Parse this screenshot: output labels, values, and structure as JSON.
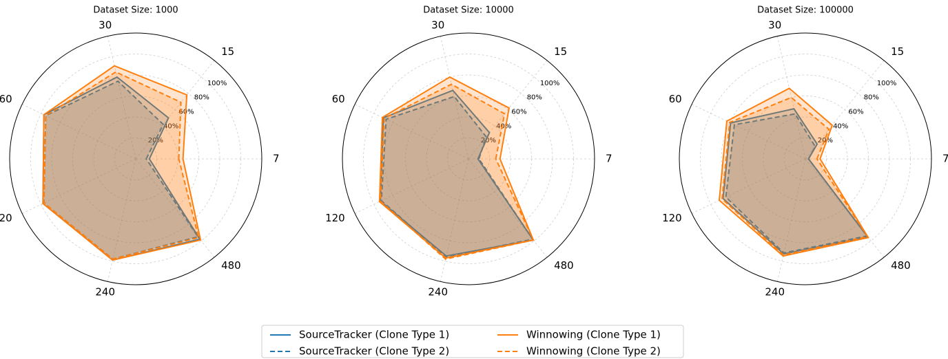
{
  "chart_data": [
    {
      "type": "radar",
      "title": "Dataset Size: 1000",
      "categories": [
        "7",
        "15",
        "30",
        "60",
        "120",
        "240",
        "480"
      ],
      "ylim": [
        0,
        120
      ],
      "yticks": [
        {
          "value": 20,
          "label": "20%"
        },
        {
          "value": 40,
          "label": "40%"
        },
        {
          "value": 60,
          "label": "60%"
        },
        {
          "value": 80,
          "label": "80%"
        },
        {
          "value": 100,
          "label": "100%"
        }
      ],
      "series": [
        {
          "name": "SourceTracker (Clone Type 1)",
          "color": "#1f77b4",
          "linestyle": "solid",
          "values": [
            13,
            50,
            80,
            97,
            98,
            99,
            98
          ]
        },
        {
          "name": "SourceTracker (Clone Type 2)",
          "color": "#1f77b4",
          "linestyle": "dashed",
          "values": [
            10,
            42,
            76,
            95,
            97,
            98,
            95
          ]
        },
        {
          "name": "Winnowing (Clone Type 1)",
          "color": "#ff7f0e",
          "linestyle": "solid",
          "values": [
            45,
            78,
            91,
            97,
            98,
            99,
            99
          ]
        },
        {
          "name": "Winnowing (Clone Type 2)",
          "color": "#ff7f0e",
          "linestyle": "dashed",
          "values": [
            41,
            69,
            85,
            95,
            97,
            98,
            96
          ]
        }
      ]
    },
    {
      "type": "radar",
      "title": "Dataset Size: 10000",
      "categories": [
        "7",
        "15",
        "30",
        "60",
        "120",
        "240",
        "480"
      ],
      "ylim": [
        0,
        120
      ],
      "yticks": [
        {
          "value": 20,
          "label": "20%"
        },
        {
          "value": 40,
          "label": "40%"
        },
        {
          "value": 60,
          "label": "60%"
        },
        {
          "value": 80,
          "label": "80%"
        },
        {
          "value": 100,
          "label": "100%"
        }
      ],
      "series": [
        {
          "name": "SourceTracker (Clone Type 1)",
          "color": "#1f77b4",
          "linestyle": "solid",
          "values": [
            9,
            32,
            67,
            90,
            93,
            95,
            99
          ]
        },
        {
          "name": "SourceTracker (Clone Type 2)",
          "color": "#1f77b4",
          "linestyle": "dashed",
          "values": [
            10,
            27,
            61,
            87,
            92,
            96,
            98
          ]
        },
        {
          "name": "Winnowing (Clone Type 1)",
          "color": "#ff7f0e",
          "linestyle": "solid",
          "values": [
            30,
            62,
            80,
            91,
            94,
            97,
            99
          ]
        },
        {
          "name": "Winnowing (Clone Type 2)",
          "color": "#ff7f0e",
          "linestyle": "dashed",
          "values": [
            26,
            55,
            73,
            89,
            93,
            98,
            99
          ]
        }
      ]
    },
    {
      "type": "radar",
      "title": "Dataset Size: 100000",
      "categories": [
        "7",
        "15",
        "30",
        "60",
        "120",
        "240",
        "480"
      ],
      "ylim": [
        0,
        120
      ],
      "yticks": [
        {
          "value": 20,
          "label": "20%"
        },
        {
          "value": 40,
          "label": "40%"
        },
        {
          "value": 60,
          "label": "60%"
        },
        {
          "value": 80,
          "label": "80%"
        },
        {
          "value": 100,
          "label": "100%"
        }
      ],
      "series": [
        {
          "name": "SourceTracker (Clone Type 1)",
          "color": "#1f77b4",
          "linestyle": "solid",
          "values": [
            3,
            18,
            49,
            79,
            87,
            93,
            95
          ]
        },
        {
          "name": "SourceTracker (Clone Type 2)",
          "color": "#1f77b4",
          "linestyle": "dashed",
          "values": [
            3,
            15,
            44,
            75,
            84,
            92,
            94
          ]
        },
        {
          "name": "Winnowing (Clone Type 1)",
          "color": "#ff7f0e",
          "linestyle": "solid",
          "values": [
            14,
            41,
            69,
            83,
            91,
            95,
            96
          ]
        },
        {
          "name": "Winnowing (Clone Type 2)",
          "color": "#ff7f0e",
          "linestyle": "dashed",
          "values": [
            11,
            36,
            60,
            80,
            88,
            94,
            95
          ]
        }
      ]
    }
  ]
}
